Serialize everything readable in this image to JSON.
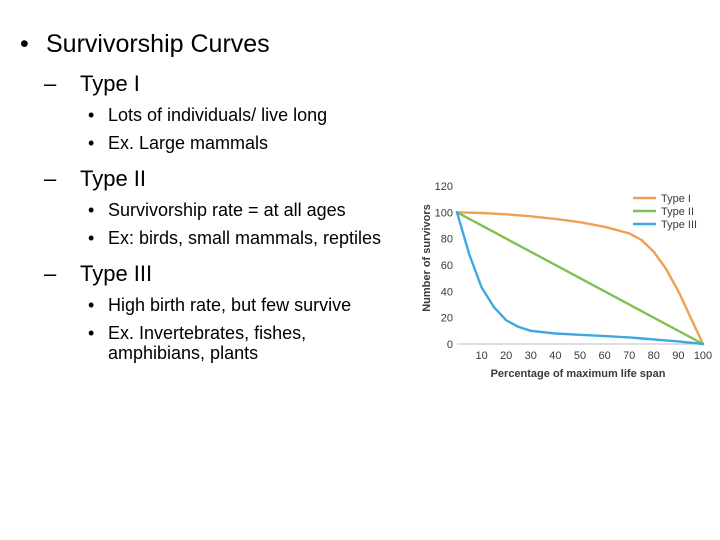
{
  "slide": {
    "title": "Survivorship Curves",
    "bullet_glyph": "•",
    "dash_glyph": "–",
    "sections": [
      {
        "heading": "Type I",
        "points": [
          "Lots of individuals/ live long",
          "Ex. Large mammals"
        ]
      },
      {
        "heading": "Type II",
        "points": [
          "Survivorship rate = at all ages",
          "Ex: birds, small mammals, reptiles"
        ]
      },
      {
        "heading": "Type III",
        "points": [
          "High birth rate, but few survive",
          "Ex. Invertebrates, fishes, amphibians, plants"
        ]
      }
    ]
  },
  "chart_data": {
    "type": "line",
    "title": "",
    "xlabel": "Percentage of maximum life span",
    "ylabel": "Number of survivors",
    "xlim": [
      0,
      100
    ],
    "ylim": [
      0,
      120
    ],
    "xticks": [
      10,
      20,
      30,
      40,
      50,
      60,
      70,
      80,
      90,
      100
    ],
    "yticks": [
      0,
      20,
      40,
      60,
      80,
      100,
      120
    ],
    "grid": false,
    "legend_position": "top-right",
    "series": [
      {
        "name": "Type I",
        "color": "#f0a050",
        "x": [
          0,
          10,
          20,
          30,
          40,
          50,
          60,
          70,
          75,
          80,
          85,
          90,
          95,
          100
        ],
        "y": [
          100,
          99.5,
          98.5,
          97,
          95,
          92.5,
          89,
          84,
          79,
          70,
          57,
          40,
          20,
          0
        ]
      },
      {
        "name": "Type II",
        "color": "#80c050",
        "x": [
          0,
          100
        ],
        "y": [
          100,
          0
        ]
      },
      {
        "name": "Type III",
        "color": "#40a8e0",
        "x": [
          0,
          5,
          10,
          15,
          20,
          25,
          30,
          40,
          50,
          60,
          70,
          80,
          90,
          100
        ],
        "y": [
          100,
          68,
          43,
          28,
          18,
          13,
          10,
          8,
          7,
          6,
          5,
          3.5,
          2,
          0
        ]
      }
    ]
  }
}
